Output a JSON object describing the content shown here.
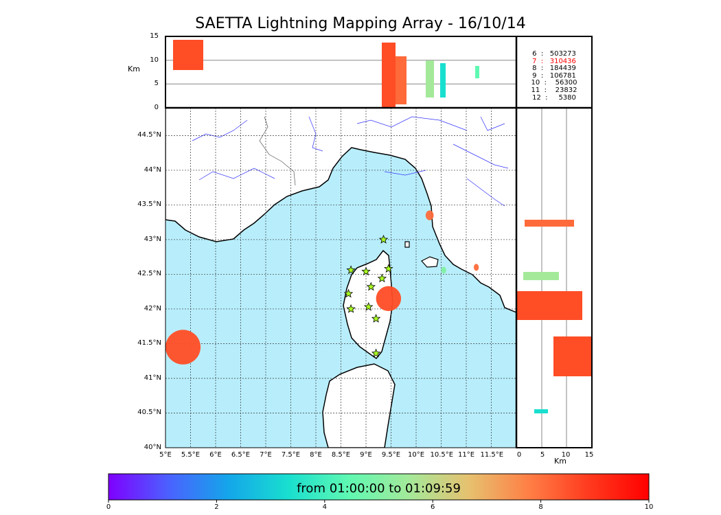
{
  "chart_data": {
    "type": "scatter",
    "title": "SAETTA Lightning Mapping Array - 16/10/14",
    "map": {
      "lon_range": [
        5.0,
        12.0
      ],
      "lat_range": [
        40.0,
        44.9
      ],
      "lon_ticks": [
        "5°E",
        "5.5°E",
        "6°E",
        "6.5°E",
        "7°E",
        "7.5°E",
        "8°E",
        "8.5°E",
        "9°E",
        "9.5°E",
        "10°E",
        "10.5°E",
        "11°E",
        "11.5°E"
      ],
      "lat_ticks": [
        "40°N",
        "40.5°N",
        "41°N",
        "41.5°N",
        "42°N",
        "42.5°N",
        "43°N",
        "43.5°N",
        "44°N",
        "44.5°N"
      ],
      "stations": [
        {
          "lon": 9.35,
          "lat": 43.0
        },
        {
          "lon": 8.7,
          "lat": 42.56
        },
        {
          "lon": 9.0,
          "lat": 42.54
        },
        {
          "lon": 9.45,
          "lat": 42.58
        },
        {
          "lon": 9.32,
          "lat": 42.44
        },
        {
          "lon": 9.1,
          "lat": 42.32
        },
        {
          "lon": 8.65,
          "lat": 42.22
        },
        {
          "lon": 8.7,
          "lat": 42.0
        },
        {
          "lon": 9.05,
          "lat": 42.03
        },
        {
          "lon": 9.2,
          "lat": 41.86
        },
        {
          "lon": 9.2,
          "lat": 41.36
        }
      ],
      "clusters": [
        {
          "lon": 5.35,
          "lat": 41.45,
          "rlon": 0.35,
          "rlat": 0.25,
          "color": "#ff4d26"
        },
        {
          "lon": 9.45,
          "lat": 42.15,
          "rlon": 0.25,
          "rlat": 0.18,
          "color": "#ff4d26"
        },
        {
          "lon": 10.27,
          "lat": 43.35,
          "rlon": 0.08,
          "rlat": 0.07,
          "color": "#ff6a3a"
        },
        {
          "lon": 10.55,
          "lat": 42.56,
          "rlon": 0.05,
          "rlat": 0.05,
          "color": "#7ff0a0"
        },
        {
          "lon": 11.2,
          "lat": 42.6,
          "rlon": 0.05,
          "rlat": 0.05,
          "color": "#ff6a3a"
        }
      ]
    },
    "altitude_top": {
      "ylabel": "Km",
      "ylim": [
        0,
        15
      ],
      "yticks": [
        "0",
        "5",
        "10",
        "15"
      ]
    },
    "altitude_side": {
      "xlabel": "Km",
      "xlim": [
        0,
        15
      ],
      "xticks": [
        "0",
        "5",
        "10",
        "15"
      ]
    },
    "counts": [
      {
        "label": "6  :   503273",
        "color": "#000000"
      },
      {
        "label": "7  :   310436",
        "color": "#ff0000"
      },
      {
        "label": "8  :   184439",
        "color": "#000000"
      },
      {
        "label": "9  :   106781",
        "color": "#000000"
      },
      {
        "label": "10  :    56300",
        "color": "#000000"
      },
      {
        "label": "11  :    23832",
        "color": "#000000"
      },
      {
        "label": "12  :     5380",
        "color": "#000000"
      }
    ],
    "colorbar": {
      "label": "from 01:00:00 to 01:09:59",
      "range": [
        0,
        10
      ],
      "ticks": [
        "0",
        "2",
        "4",
        "6",
        "8",
        "10"
      ],
      "colors": [
        "#7f00ff",
        "#4b61ff",
        "#14a6ea",
        "#19dfcf",
        "#5ff8b2",
        "#a4e99a",
        "#e6c16f",
        "#ff7f46",
        "#ff3a1e",
        "#ff0000"
      ]
    }
  }
}
